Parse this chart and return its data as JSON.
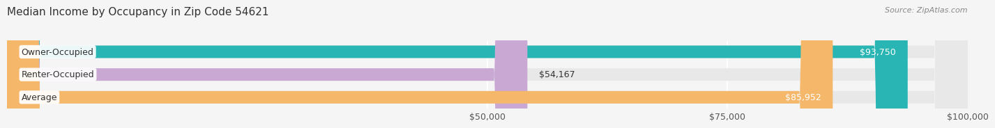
{
  "title": "Median Income by Occupancy in Zip Code 54621",
  "source": "Source: ZipAtlas.com",
  "categories": [
    "Owner-Occupied",
    "Renter-Occupied",
    "Average"
  ],
  "values": [
    93750,
    54167,
    85952
  ],
  "bar_colors": [
    "#2ab5b5",
    "#c9a8d4",
    "#f5b86a"
  ],
  "bar_bg_color": "#e8e8e8",
  "value_labels": [
    "$93,750",
    "$54,167",
    "$85,952"
  ],
  "xlim": [
    0,
    100000
  ],
  "xticks": [
    50000,
    75000,
    100000
  ],
  "xticklabels": [
    "$50,000",
    "$75,000",
    "$100,000"
  ],
  "title_fontsize": 11,
  "source_fontsize": 8,
  "label_fontsize": 9,
  "bar_height": 0.55,
  "background_color": "#f5f5f5"
}
